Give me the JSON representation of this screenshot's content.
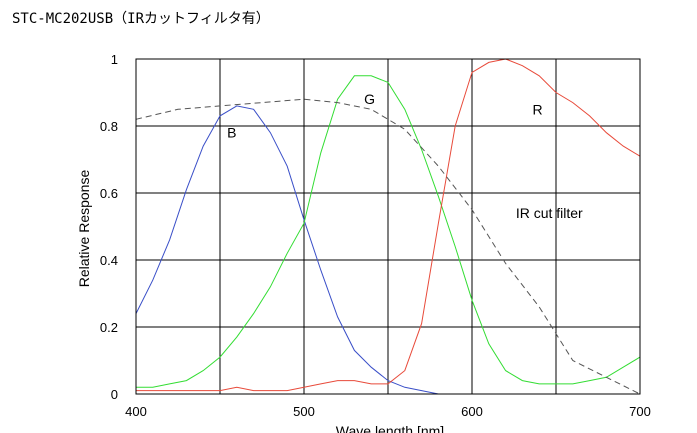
{
  "title": "STC-MC202USB（IRカットフィルタ有）",
  "chart_data": {
    "type": "line",
    "title": "STC-MC202USB（IRカットフィルタ有）",
    "xlabel": "Wave length [nm]",
    "ylabel": "Relative Response",
    "xlim": [
      400,
      700
    ],
    "ylim": [
      0,
      1
    ],
    "xticks": [
      400,
      500,
      600,
      700
    ],
    "xtick_labels": [
      "400",
      "500",
      "600",
      "700"
    ],
    "xgrid": [
      400,
      450,
      500,
      550,
      600,
      650,
      700
    ],
    "yticks": [
      0,
      0.2,
      0.4,
      0.6,
      0.8,
      1
    ],
    "ytick_labels": [
      "0",
      "0.2",
      "0.4",
      "0.6",
      "0.8",
      "1"
    ],
    "grid": true,
    "legend": "none",
    "series": [
      {
        "name": "B",
        "color": "#3a4fc8",
        "dashed": false,
        "points": [
          [
            400,
            0.24
          ],
          [
            410,
            0.34
          ],
          [
            420,
            0.46
          ],
          [
            430,
            0.61
          ],
          [
            440,
            0.74
          ],
          [
            450,
            0.83
          ],
          [
            460,
            0.86
          ],
          [
            470,
            0.85
          ],
          [
            480,
            0.78
          ],
          [
            490,
            0.68
          ],
          [
            500,
            0.52
          ],
          [
            510,
            0.37
          ],
          [
            520,
            0.23
          ],
          [
            530,
            0.13
          ],
          [
            540,
            0.08
          ],
          [
            550,
            0.04
          ],
          [
            560,
            0.02
          ],
          [
            570,
            0.01
          ],
          [
            580,
            0.0
          ]
        ]
      },
      {
        "name": "G",
        "color": "#33dd33",
        "dashed": false,
        "points": [
          [
            400,
            0.02
          ],
          [
            410,
            0.02
          ],
          [
            420,
            0.03
          ],
          [
            430,
            0.04
          ],
          [
            440,
            0.07
          ],
          [
            450,
            0.11
          ],
          [
            460,
            0.17
          ],
          [
            470,
            0.24
          ],
          [
            480,
            0.32
          ],
          [
            490,
            0.42
          ],
          [
            500,
            0.51
          ],
          [
            510,
            0.72
          ],
          [
            520,
            0.88
          ],
          [
            530,
            0.95
          ],
          [
            540,
            0.95
          ],
          [
            550,
            0.93
          ],
          [
            560,
            0.85
          ],
          [
            570,
            0.73
          ],
          [
            580,
            0.59
          ],
          [
            590,
            0.44
          ],
          [
            600,
            0.28
          ],
          [
            610,
            0.15
          ],
          [
            620,
            0.07
          ],
          [
            630,
            0.04
          ],
          [
            640,
            0.03
          ],
          [
            650,
            0.03
          ],
          [
            660,
            0.03
          ],
          [
            670,
            0.04
          ],
          [
            680,
            0.05
          ],
          [
            690,
            0.08
          ],
          [
            700,
            0.11
          ]
        ]
      },
      {
        "name": "R",
        "color": "#e84a3a",
        "dashed": false,
        "points": [
          [
            400,
            0.01
          ],
          [
            450,
            0.01
          ],
          [
            460,
            0.02
          ],
          [
            470,
            0.01
          ],
          [
            490,
            0.01
          ],
          [
            500,
            0.02
          ],
          [
            510,
            0.03
          ],
          [
            520,
            0.04
          ],
          [
            530,
            0.04
          ],
          [
            540,
            0.03
          ],
          [
            550,
            0.03
          ],
          [
            560,
            0.07
          ],
          [
            570,
            0.21
          ],
          [
            580,
            0.51
          ],
          [
            590,
            0.8
          ],
          [
            600,
            0.96
          ],
          [
            610,
            0.99
          ],
          [
            620,
            1.0
          ],
          [
            630,
            0.98
          ],
          [
            640,
            0.95
          ],
          [
            650,
            0.9
          ],
          [
            660,
            0.87
          ],
          [
            670,
            0.83
          ],
          [
            680,
            0.78
          ],
          [
            690,
            0.74
          ],
          [
            700,
            0.71
          ]
        ]
      },
      {
        "name": "IR cut filter",
        "color": "#555555",
        "dashed": true,
        "points": [
          [
            400,
            0.82
          ],
          [
            425,
            0.85
          ],
          [
            450,
            0.86
          ],
          [
            475,
            0.87
          ],
          [
            500,
            0.88
          ],
          [
            520,
            0.87
          ],
          [
            540,
            0.85
          ],
          [
            560,
            0.79
          ],
          [
            580,
            0.68
          ],
          [
            600,
            0.55
          ],
          [
            620,
            0.39
          ],
          [
            640,
            0.26
          ],
          [
            660,
            0.1
          ],
          [
            680,
            0.05
          ],
          [
            700,
            0.0
          ]
        ]
      }
    ],
    "annotations": [
      {
        "text": "B",
        "x": 457,
        "y": 0.78
      },
      {
        "text": "G",
        "x": 539,
        "y": 0.88
      },
      {
        "text": "R",
        "x": 639,
        "y": 0.85
      },
      {
        "text": "IR cut filter",
        "x": 646,
        "y": 0.54
      }
    ]
  }
}
